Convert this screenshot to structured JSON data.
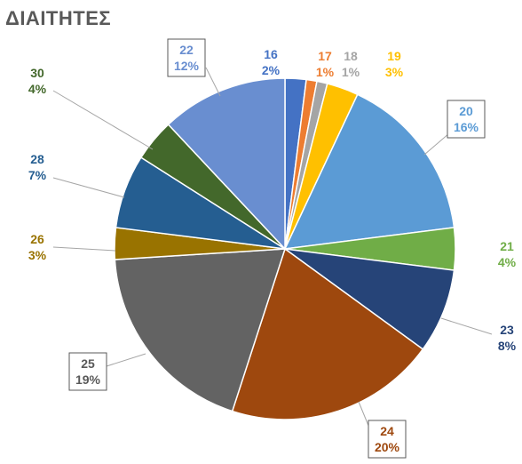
{
  "chart_data": {
    "type": "pie",
    "title": "ΔΙΑΙΤΗΤΕΣ",
    "categories": [
      "16",
      "17",
      "18",
      "19",
      "20",
      "21",
      "23",
      "24",
      "25",
      "26",
      "28",
      "30",
      "22"
    ],
    "values": [
      2,
      1,
      1,
      3,
      16,
      4,
      8,
      20,
      19,
      3,
      7,
      4,
      12
    ],
    "labels": [
      "2%",
      "1%",
      "1%",
      "3%",
      "16%",
      "4%",
      "8%",
      "20%",
      "19%",
      "3%",
      "7%",
      "4%",
      "12%"
    ],
    "colors": [
      "#4472C4",
      "#ED7D31",
      "#A5A5A5",
      "#FFC000",
      "#5B9BD5",
      "#70AD47",
      "#264478",
      "#9E480E",
      "#636363",
      "#997300",
      "#255E91",
      "#43682B",
      "#698ED0"
    ],
    "label_colors": [
      "#4472C4",
      "#ED7D31",
      "#A5A5A5",
      "#FFC000",
      "#5B9BD5",
      "#70AD47",
      "#264478",
      "#9E480E",
      "#595959",
      "#997300",
      "#255E91",
      "#43682B",
      "#698ED0"
    ],
    "boxed_labels": [
      "20",
      "24",
      "25",
      "22"
    ],
    "legend": "none"
  }
}
